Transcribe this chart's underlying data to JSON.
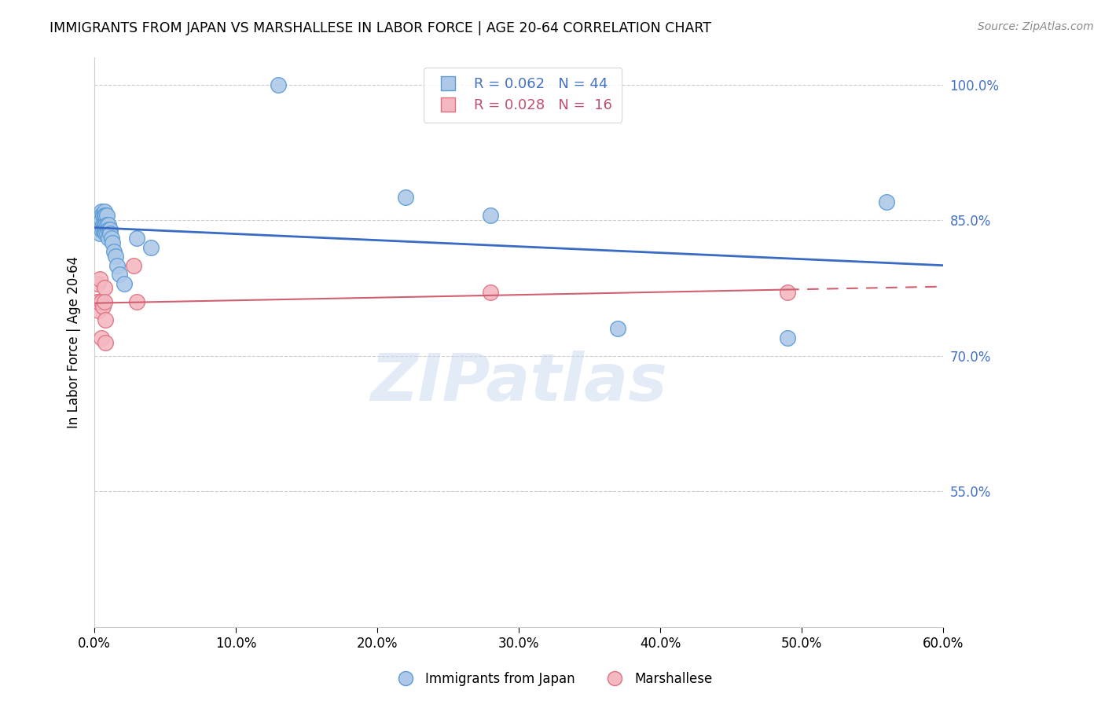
{
  "title": "IMMIGRANTS FROM JAPAN VS MARSHALLESE IN LABOR FORCE | AGE 20-64 CORRELATION CHART",
  "source": "Source: ZipAtlas.com",
  "ylabel": "In Labor Force | Age 20-64",
  "xlim": [
    0.0,
    0.6
  ],
  "ylim": [
    0.4,
    1.03
  ],
  "yticks_right": [
    0.55,
    0.7,
    0.85,
    1.0
  ],
  "xticks": [
    0.0,
    0.1,
    0.2,
    0.3,
    0.4,
    0.5,
    0.6
  ],
  "blue_R": 0.062,
  "blue_N": 44,
  "pink_R": 0.028,
  "pink_N": 16,
  "blue_fill": "#aec9e8",
  "blue_edge": "#5b9bd5",
  "pink_fill": "#f4b8c1",
  "pink_edge": "#e07080",
  "trend_blue": "#3a6bc4",
  "trend_pink": "#d06070",
  "legend_label_blue": "Immigrants from Japan",
  "legend_label_pink": "Marshallese",
  "watermark": "ZIPatlas",
  "blue_x": [
    0.002,
    0.003,
    0.003,
    0.004,
    0.004,
    0.004,
    0.005,
    0.005,
    0.005,
    0.005,
    0.006,
    0.006,
    0.006,
    0.007,
    0.007,
    0.007,
    0.007,
    0.008,
    0.008,
    0.008,
    0.008,
    0.009,
    0.009,
    0.009,
    0.01,
    0.01,
    0.01,
    0.011,
    0.011,
    0.012,
    0.013,
    0.014,
    0.015,
    0.016,
    0.018,
    0.021,
    0.13,
    0.22,
    0.28,
    0.37,
    0.49,
    0.56,
    0.03,
    0.04
  ],
  "blue_y": [
    0.85,
    0.85,
    0.84,
    0.855,
    0.845,
    0.835,
    0.86,
    0.855,
    0.85,
    0.84,
    0.855,
    0.845,
    0.84,
    0.86,
    0.855,
    0.845,
    0.84,
    0.855,
    0.845,
    0.84,
    0.835,
    0.855,
    0.845,
    0.835,
    0.845,
    0.84,
    0.83,
    0.84,
    0.835,
    0.83,
    0.825,
    0.815,
    0.81,
    0.8,
    0.79,
    0.78,
    1.0,
    0.875,
    0.855,
    0.73,
    0.72,
    0.87,
    0.83,
    0.82
  ],
  "pink_x": [
    0.002,
    0.002,
    0.003,
    0.003,
    0.004,
    0.005,
    0.005,
    0.006,
    0.007,
    0.007,
    0.008,
    0.008,
    0.028,
    0.03,
    0.28,
    0.49
  ],
  "pink_y": [
    0.78,
    0.76,
    0.75,
    0.76,
    0.785,
    0.72,
    0.76,
    0.755,
    0.775,
    0.76,
    0.74,
    0.715,
    0.8,
    0.76,
    0.77,
    0.77
  ],
  "trend_blue_x0": 0.0,
  "trend_blue_y0": 0.82,
  "trend_blue_x1": 0.6,
  "trend_blue_y1": 0.851,
  "trend_pink_x0": 0.0,
  "trend_pink_y0": 0.762,
  "trend_pink_x1": 0.6,
  "trend_pink_y1": 0.77,
  "trend_pink_dash_start": 0.5
}
